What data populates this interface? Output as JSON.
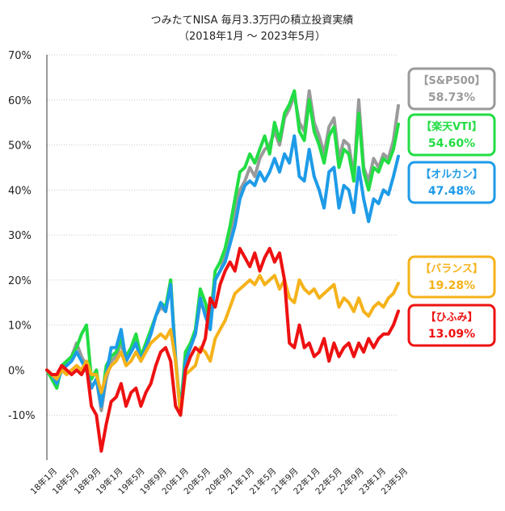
{
  "chart_data": {
    "type": "line",
    "title": "つみたてNISA 毎月3.3万円の積立投資実績",
    "subtitle": "（2018年1月 〜 2023年5月）",
    "xlabel": "",
    "ylabel": "",
    "ylim": [
      -20,
      70
    ],
    "yticks": [
      -10,
      0,
      10,
      20,
      30,
      40,
      50,
      60,
      70
    ],
    "ytick_labels": [
      "-10%",
      "0%",
      "10%",
      "20%",
      "30%",
      "40%",
      "50%",
      "60%",
      "70%"
    ],
    "grid": true,
    "x_tick_labels": [
      "18年1月",
      "18年5月",
      "18年9月",
      "19年1月",
      "19年5月",
      "19年9月",
      "20年1月",
      "20年5月",
      "20年9月",
      "21年1月",
      "21年5月",
      "21年9月",
      "22年1月",
      "22年5月",
      "22年9月",
      "23年1月",
      "23年5月"
    ],
    "series": [
      {
        "name": "S&P500",
        "legend_label": "【S&P500】",
        "final_label": "58.73%",
        "color": "#9a9a9a",
        "values": [
          0,
          -1,
          -3,
          0,
          2,
          3,
          6,
          3,
          1,
          -4,
          -2,
          -9,
          -2,
          2,
          3,
          6,
          2,
          4,
          7,
          3,
          5,
          8,
          12,
          14,
          13,
          20,
          3,
          -10,
          3,
          5,
          8,
          15,
          13,
          10,
          20,
          22,
          25,
          30,
          35,
          40,
          42,
          45,
          43,
          47,
          49,
          50,
          53,
          50,
          56,
          58,
          61,
          55,
          53,
          62,
          55,
          52,
          48,
          54,
          56,
          47,
          51,
          50,
          43,
          60,
          45,
          42,
          47,
          45,
          48,
          47,
          51,
          58.73
        ]
      },
      {
        "name": "楽天VTI",
        "legend_label": "【楽天VTI】",
        "final_label": "54.60%",
        "color": "#22dd44",
        "values": [
          0,
          -2,
          -4,
          1,
          2,
          3,
          5,
          8,
          10,
          -2,
          0,
          -7,
          1,
          3,
          4,
          7,
          3,
          5,
          8,
          3,
          6,
          9,
          12,
          15,
          14,
          20,
          2,
          -9,
          4,
          6,
          9,
          18,
          15,
          11,
          22,
          24,
          27,
          32,
          38,
          44,
          45,
          48,
          46,
          49,
          52,
          48,
          55,
          51,
          57,
          59,
          62,
          53,
          51,
          60,
          53,
          50,
          46,
          52,
          54,
          45,
          49,
          48,
          42,
          57,
          44,
          40,
          45,
          44,
          47,
          46,
          49,
          54.6
        ]
      },
      {
        "name": "オルカン",
        "legend_label": "【オルカン】",
        "final_label": "47.48%",
        "color": "#1e9be8",
        "values": [
          0,
          -1,
          -3,
          0,
          1,
          2,
          4,
          2,
          0,
          -4,
          -2,
          -8,
          -1,
          5,
          5,
          9,
          2,
          4,
          6,
          2,
          5,
          8,
          12,
          15,
          13,
          19,
          2,
          -10,
          2,
          5,
          8,
          16,
          12,
          9,
          20,
          22,
          24,
          28,
          32,
          38,
          41,
          42,
          41,
          44,
          42,
          44,
          47,
          44,
          48,
          46,
          52,
          43,
          42,
          49,
          43,
          40,
          36,
          44,
          45,
          36,
          41,
          40,
          35,
          45,
          38,
          33,
          38,
          37,
          40,
          39,
          43,
          47.48
        ]
      },
      {
        "name": "バランス",
        "legend_label": "【バランス】",
        "final_label": "19.28%",
        "color": "#f5b21a",
        "values": [
          0,
          -1,
          -2,
          0,
          -1,
          0,
          1,
          0,
          2,
          -1,
          -1,
          -5,
          -1,
          1,
          2,
          4,
          1,
          2,
          4,
          2,
          4,
          6,
          7,
          8,
          7,
          9,
          2,
          -10,
          -1,
          0,
          1,
          5,
          4,
          2,
          7,
          9,
          11,
          14,
          17,
          18,
          19,
          20,
          19,
          21,
          19,
          20,
          21,
          18,
          20,
          16,
          15,
          20,
          18,
          17,
          18,
          16,
          17,
          18,
          19,
          14,
          16,
          15,
          13,
          16,
          13,
          12,
          14,
          15,
          14,
          16,
          17,
          19.28
        ]
      },
      {
        "name": "ひふみ",
        "legend_label": "【ひふみ】",
        "final_label": "13.09%",
        "color": "#ee1111",
        "values": [
          0,
          -1,
          -1,
          1,
          0,
          -1,
          0,
          -1,
          1,
          -8,
          -10,
          -18,
          -12,
          -7,
          -6,
          -3,
          -8,
          -5,
          -4,
          -8,
          -5,
          -3,
          1,
          4,
          5,
          2,
          -8,
          -10,
          0,
          3,
          5,
          4,
          7,
          16,
          14,
          19,
          22,
          24,
          22,
          27,
          25,
          23,
          26,
          22,
          25,
          27,
          24,
          26,
          20,
          6,
          5,
          10,
          5,
          6,
          3,
          4,
          7,
          2,
          6,
          3,
          5,
          6,
          3,
          6,
          4,
          7,
          5,
          7,
          8,
          8,
          10,
          13.09
        ]
      }
    ]
  }
}
